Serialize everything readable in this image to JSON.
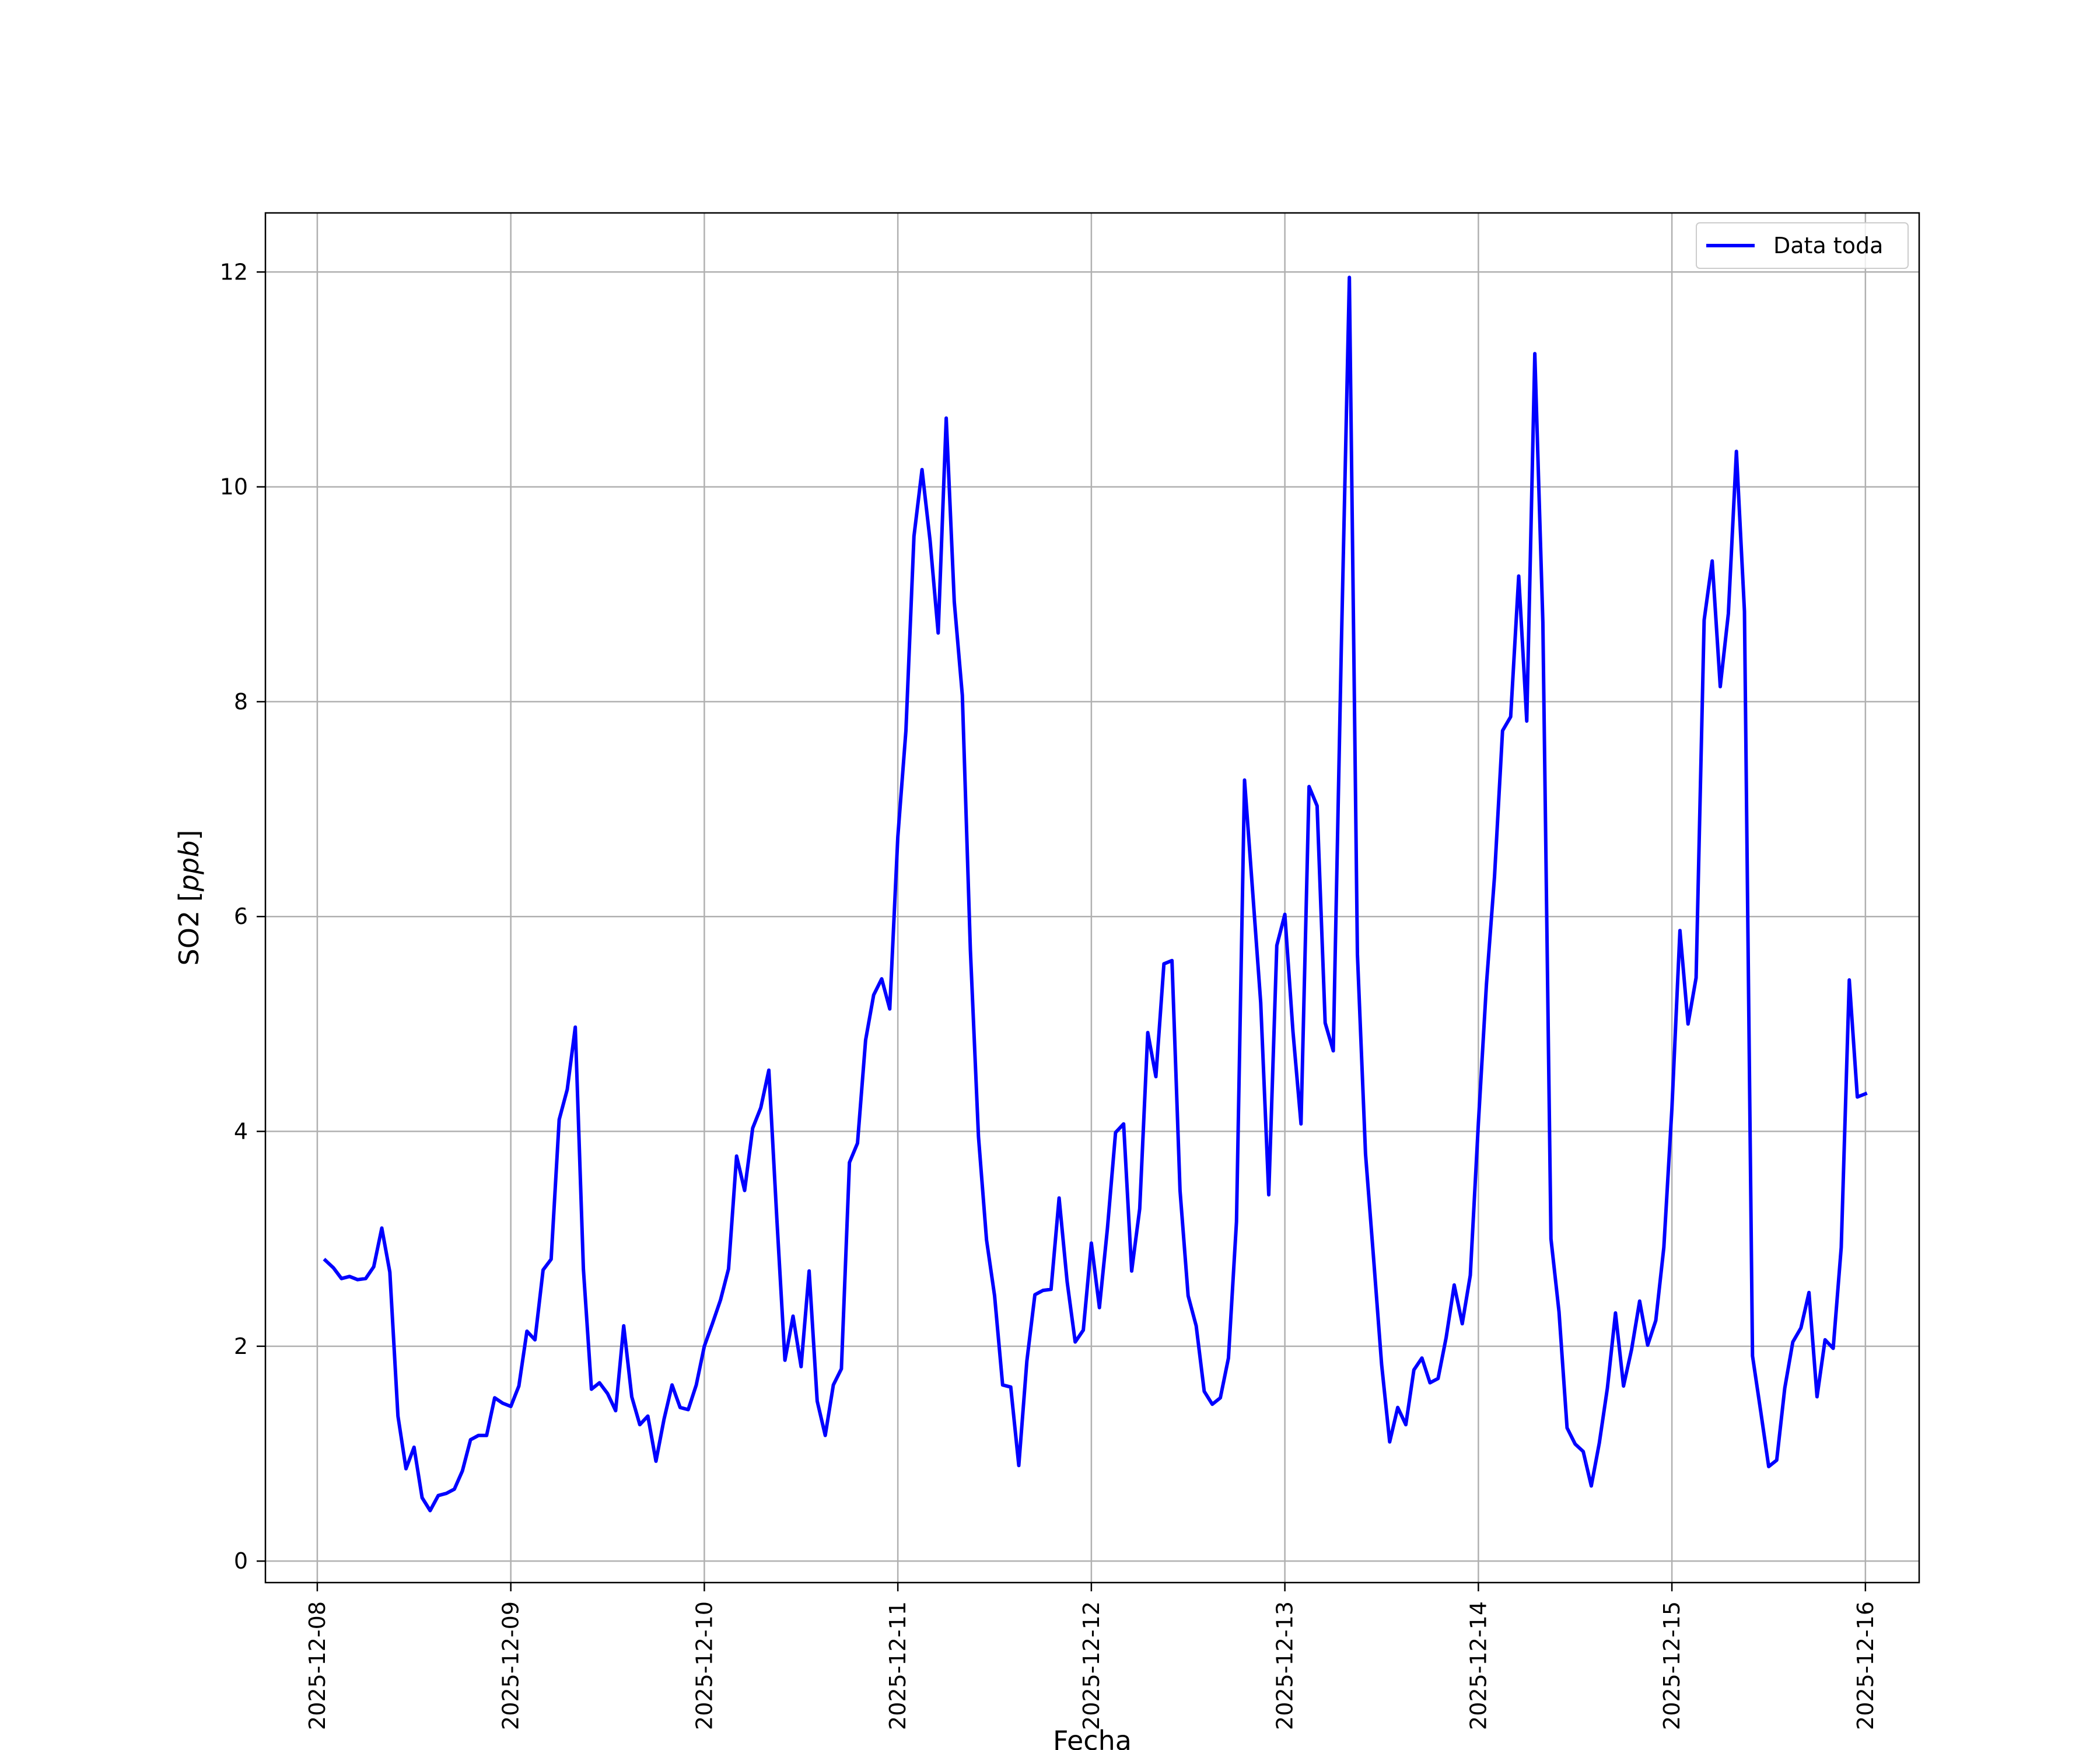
{
  "chart_data": {
    "type": "line",
    "xlabel": "Fecha",
    "ylabel": "SO2 [ppb]",
    "ylabel_prefix": "SO2 [",
    "ylabel_unit": "ppb",
    "ylabel_suffix": "]",
    "x_range": [
      "2025-12-07T17:34",
      "2025-12-16T06:40"
    ],
    "ylim": [
      -0.2,
      12.55
    ],
    "x_ticks": [
      "2025-12-08",
      "2025-12-09",
      "2025-12-10",
      "2025-12-11",
      "2025-12-12",
      "2025-12-13",
      "2025-12-14",
      "2025-12-15",
      "2025-12-16"
    ],
    "y_ticks": [
      0,
      2,
      4,
      6,
      8,
      10,
      12
    ],
    "grid": true,
    "legend_position": "upper right",
    "series": [
      {
        "name": "Data toda",
        "color": "#0000ff",
        "start": "2025-12-08T01:00",
        "step_hours": 1,
        "values": [
          2.8,
          2.73,
          2.63,
          2.65,
          2.62,
          2.63,
          2.74,
          3.1,
          2.69,
          1.35,
          0.86,
          1.06,
          0.59,
          0.47,
          0.61,
          0.63,
          0.67,
          0.84,
          1.13,
          1.17,
          1.17,
          1.52,
          1.47,
          1.44,
          1.63,
          2.14,
          2.06,
          2.71,
          2.81,
          4.11,
          4.39,
          4.97,
          2.72,
          1.6,
          1.66,
          1.56,
          1.4,
          2.19,
          1.53,
          1.27,
          1.35,
          0.93,
          1.32,
          1.64,
          1.43,
          1.41,
          1.64,
          2.0,
          2.21,
          2.43,
          2.72,
          3.77,
          3.45,
          4.03,
          4.22,
          4.57,
          3.18,
          1.87,
          2.28,
          1.81,
          2.7,
          1.49,
          1.17,
          1.64,
          1.79,
          3.71,
          3.89,
          4.85,
          5.27,
          5.42,
          5.14,
          6.74,
          7.73,
          9.54,
          10.16,
          9.5,
          8.64,
          10.64,
          8.93,
          8.06,
          5.69,
          3.95,
          2.99,
          2.47,
          1.64,
          1.62,
          0.89,
          1.86,
          2.48,
          2.52,
          2.53,
          3.38,
          2.6,
          2.04,
          2.15,
          2.96,
          2.36,
          3.1,
          3.99,
          4.07,
          2.7,
          3.28,
          4.92,
          4.51,
          5.56,
          5.59,
          3.45,
          2.47,
          2.19,
          1.58,
          1.46,
          1.52,
          1.89,
          3.16,
          7.27,
          6.24,
          5.2,
          3.41,
          5.73,
          6.02,
          4.93,
          4.07,
          7.21,
          7.03,
          5.01,
          4.75,
          8.5,
          11.95,
          5.65,
          3.79,
          2.82,
          1.83,
          1.11,
          1.43,
          1.27,
          1.78,
          1.89,
          1.66,
          1.7,
          2.08,
          2.57,
          2.21,
          2.66,
          4.08,
          5.37,
          6.37,
          7.73,
          7.86,
          9.17,
          7.82,
          11.24,
          8.74,
          3.0,
          2.32,
          1.24,
          1.09,
          1.02,
          0.7,
          1.1,
          1.61,
          2.31,
          1.63,
          1.97,
          2.42,
          2.01,
          2.24,
          2.92,
          4.21,
          5.87,
          5.0,
          5.43,
          8.76,
          9.31,
          8.14,
          8.82,
          10.33,
          8.84,
          1.91,
          1.4,
          0.88,
          0.94,
          1.61,
          2.04,
          2.17,
          2.5,
          1.53,
          2.06,
          1.98,
          2.92,
          5.41,
          4.32,
          4.35
        ]
      }
    ]
  }
}
